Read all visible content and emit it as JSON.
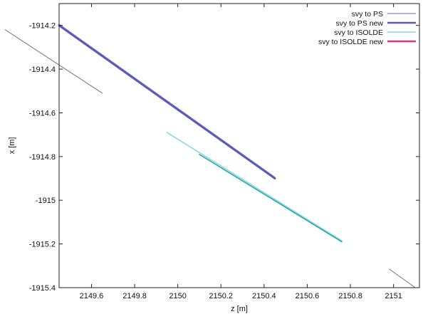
{
  "chart_data": {
    "type": "line",
    "title": "",
    "xlabel": "z [m]",
    "ylabel": "x [m]",
    "xlim": [
      2149.45,
      2151.12
    ],
    "ylim": [
      -1915.4,
      -1914.1
    ],
    "x_ticks": [
      2149.6,
      2149.8,
      2150,
      2150.2,
      2150.4,
      2150.6,
      2150.8,
      2151
    ],
    "x_tick_labels": [
      "2149.6",
      "2149.8",
      "2150",
      "2150.2",
      "2150.4",
      "2150.6",
      "2150.8",
      "2151"
    ],
    "y_ticks": [
      -1914.2,
      -1914.4,
      -1914.6,
      -1914.8,
      -1915,
      -1915.2,
      -1915.4
    ],
    "y_tick_labels": [
      "-1914.2",
      "-1914.4",
      "-1914.6",
      "-1914.8",
      "-1915",
      "-1915.2",
      "-1915.4"
    ],
    "grid": false,
    "legend_position": "top-right",
    "series": [
      {
        "name": "svy to PS",
        "color": "#9a9ac8",
        "x": [
          2149.45,
          2150.45
        ],
        "y": [
          -1914.195,
          -1914.895
        ]
      },
      {
        "name": "svy to PS new",
        "color": "#5a5ab8",
        "x": [
          2149.45,
          2150.45
        ],
        "y": [
          -1914.2,
          -1914.9
        ]
      },
      {
        "name": "svy to ISOLDE",
        "color": "#8ad8e4",
        "x": [
          2149.95,
          2150.76
        ],
        "y": [
          -1914.69,
          -1915.185
        ]
      },
      {
        "name": "svy to ISOLDE new",
        "color": "#d63a7a",
        "x": [],
        "y": []
      },
      {
        "name": "",
        "color": "#2aa6a6",
        "x": [
          2150.1,
          2150.76
        ],
        "y": [
          -1914.79,
          -1915.19
        ]
      },
      {
        "name": "",
        "color": "#777777",
        "x": [
          2149.2,
          2149.65
        ],
        "y": [
          -1914.22,
          -1914.51
        ]
      },
      {
        "name": "",
        "color": "#777777",
        "x": [
          2150.98,
          2151.2
        ],
        "y": [
          -1915.315,
          -1915.47
        ]
      }
    ]
  }
}
